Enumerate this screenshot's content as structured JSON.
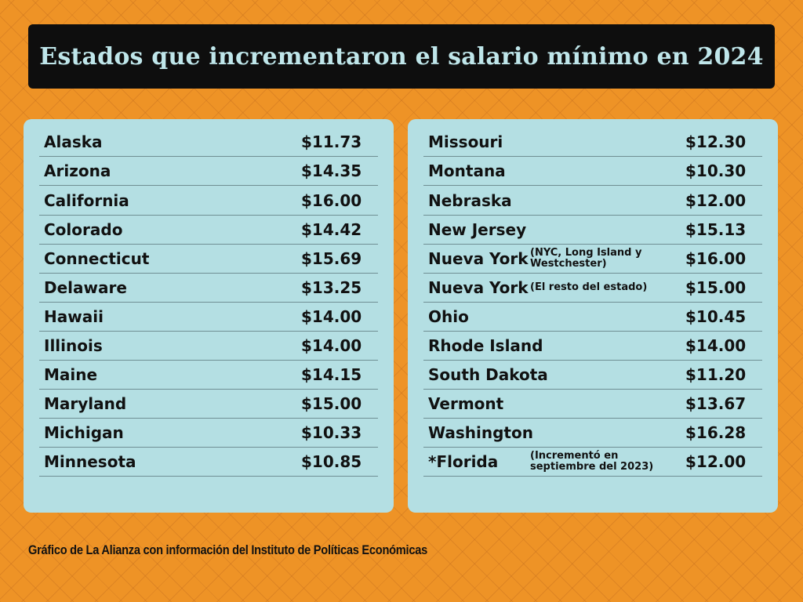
{
  "title": "Estados que incrementaron el salario mínimo en 2024",
  "left_table": [
    {
      "state": "Alaska",
      "note": "",
      "wage": "$11.73"
    },
    {
      "state": "Arizona",
      "note": "",
      "wage": "$14.35"
    },
    {
      "state": "California",
      "note": "",
      "wage": "$16.00"
    },
    {
      "state": "Colorado",
      "note": "",
      "wage": "$14.42"
    },
    {
      "state": "Connecticut",
      "note": "",
      "wage": "$15.69"
    },
    {
      "state": "Delaware",
      "note": "",
      "wage": "$13.25"
    },
    {
      "state": "Hawaii",
      "note": "",
      "wage": "$14.00"
    },
    {
      "state": "Illinois",
      "note": "",
      "wage": "$14.00"
    },
    {
      "state": "Maine",
      "note": "",
      "wage": "$14.15"
    },
    {
      "state": "Maryland",
      "note": "",
      "wage": "$15.00"
    },
    {
      "state": "Michigan",
      "note": "",
      "wage": "$10.33"
    },
    {
      "state": "Minnesota",
      "note": "",
      "wage": "$10.85"
    }
  ],
  "right_table": [
    {
      "state": "Missouri",
      "note": "",
      "wage": "$12.30"
    },
    {
      "state": "Montana",
      "note": "",
      "wage": "$10.30"
    },
    {
      "state": "Nebraska",
      "note": "",
      "wage": "$12.00"
    },
    {
      "state": "New Jersey",
      "note": "",
      "wage": "$15.13"
    },
    {
      "state": "Nueva York",
      "note": "(NYC, Long Island y Westchester)",
      "wage": "$16.00"
    },
    {
      "state": "Nueva York",
      "note": "(El resto del estado)",
      "wage": "$15.00"
    },
    {
      "state": "Ohio",
      "note": "",
      "wage": "$10.45"
    },
    {
      "state": "Rhode Island",
      "note": "",
      "wage": "$14.00"
    },
    {
      "state": "South Dakota",
      "note": "",
      "wage": "$11.20"
    },
    {
      "state": "Vermont",
      "note": "",
      "wage": "$13.67"
    },
    {
      "state": "Washington",
      "note": "",
      "wage": "$16.28"
    },
    {
      "state": "*Florida",
      "note": "(Incrementó en septiembre del 2023)",
      "wage": "$12.00"
    }
  ],
  "source": "Gráfico de La Alianza con información del Instituto de Políticas Económicas",
  "colors": {
    "background": "#ee9326",
    "title_bg": "#0e0e0e",
    "title_text": "#bfe6ea",
    "panel": "#b4dfe3"
  }
}
